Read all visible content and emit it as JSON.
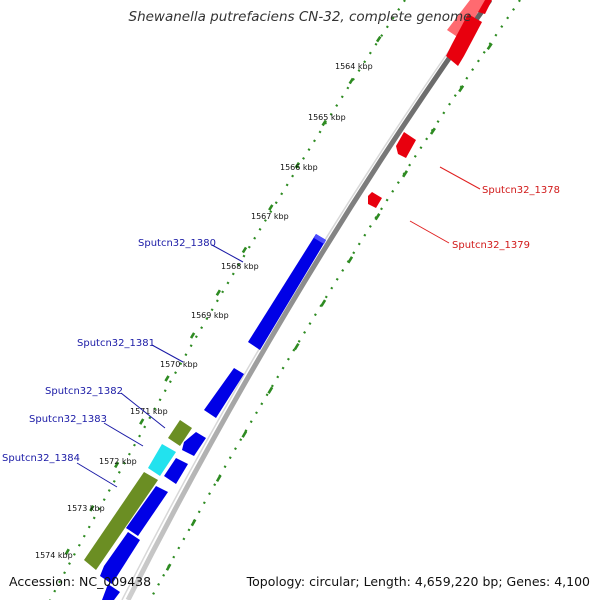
{
  "title": "Shewanella putrefaciens CN-32, complete genome",
  "footer": {
    "accession": "Accession: NC_009438",
    "summary": "Topology: circular; Length: 4,659,220 bp; Genes: 4,100"
  },
  "colors": {
    "backbone": "#8f8f8f",
    "tick_dots": "#2e8b22",
    "forward_gene": "#e8000e",
    "reverse_gene": "#0000e6",
    "reverse_label": "#1a1aa6",
    "forward_label": "#d11919",
    "olive_gene": "#6b8e23",
    "cyan_gene": "#22e2ee"
  },
  "kbp_labels": [
    "1564 kbp",
    "1565 kbp",
    "1566 kbp",
    "1567 kbp",
    "1568 kbp",
    "1569 kbp",
    "1570 kbp",
    "1571 kbp",
    "1572 kbp",
    "1573 kbp",
    "1574 kbp"
  ],
  "gene_labels": [
    {
      "text": "Sputcn32_1378",
      "strand": "forward"
    },
    {
      "text": "Sputcn32_1379",
      "strand": "forward"
    },
    {
      "text": "Sputcn32_1380",
      "strand": "reverse"
    },
    {
      "text": "Sputcn32_1381",
      "strand": "reverse"
    },
    {
      "text": "Sputcn32_1382",
      "strand": "reverse"
    },
    {
      "text": "Sputcn32_1383",
      "strand": "reverse"
    },
    {
      "text": "Sputcn32_1384",
      "strand": "reverse"
    }
  ]
}
